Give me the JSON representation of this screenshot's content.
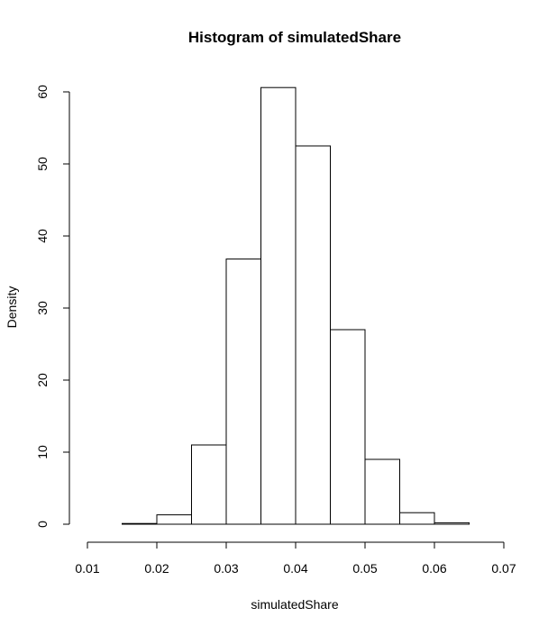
{
  "chart_data": {
    "type": "bar",
    "subtype": "histogram",
    "title": "Histogram of simulatedShare",
    "xlabel": "simulatedShare",
    "ylabel": "Density",
    "xlim": [
      0.01,
      0.07
    ],
    "ylim": [
      0,
      60
    ],
    "x_ticks": [
      "0.01",
      "0.02",
      "0.03",
      "0.04",
      "0.05",
      "0.06",
      "0.07"
    ],
    "y_ticks": [
      "0",
      "10",
      "20",
      "30",
      "40",
      "50",
      "60"
    ],
    "bins": [
      {
        "start": 0.01,
        "end": 0.015,
        "density": 0.0
      },
      {
        "start": 0.015,
        "end": 0.02,
        "density": 0.1
      },
      {
        "start": 0.02,
        "end": 0.025,
        "density": 1.3
      },
      {
        "start": 0.025,
        "end": 0.03,
        "density": 11.0
      },
      {
        "start": 0.03,
        "end": 0.035,
        "density": 36.8
      },
      {
        "start": 0.035,
        "end": 0.04,
        "density": 60.6
      },
      {
        "start": 0.04,
        "end": 0.045,
        "density": 52.5
      },
      {
        "start": 0.045,
        "end": 0.05,
        "density": 27.0
      },
      {
        "start": 0.05,
        "end": 0.055,
        "density": 9.0
      },
      {
        "start": 0.055,
        "end": 0.06,
        "density": 1.6
      },
      {
        "start": 0.06,
        "end": 0.065,
        "density": 0.2
      },
      {
        "start": 0.065,
        "end": 0.07,
        "density": 0.0
      }
    ],
    "grid": false,
    "legend": "none",
    "bar_fill": "#ffffff",
    "bar_stroke": "#000000"
  }
}
